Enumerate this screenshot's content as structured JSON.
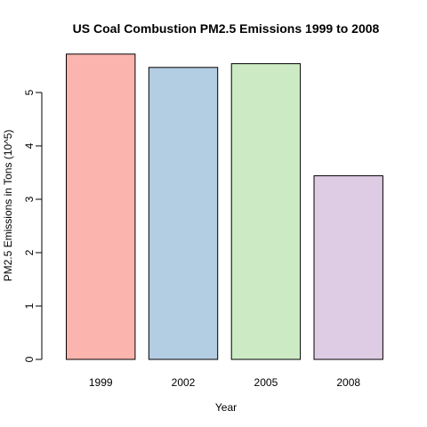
{
  "chart_data": {
    "type": "bar",
    "title": "US Coal Combustion PM2.5 Emissions 1999 to 2008",
    "xlabel": "Year",
    "ylabel": "PM2.5 Emissions in Tons (10^5)",
    "categories": [
      "1999",
      "2002",
      "2005",
      "2008"
    ],
    "values": [
      5.72,
      5.47,
      5.54,
      3.44
    ],
    "colors": [
      "#FBB4AE",
      "#B3CDE3",
      "#CCEBC5",
      "#DECBE4"
    ],
    "ylim": [
      0,
      5.8
    ],
    "yticks": [
      0,
      1,
      2,
      3,
      4,
      5
    ],
    "grid": false,
    "legend": "none"
  }
}
